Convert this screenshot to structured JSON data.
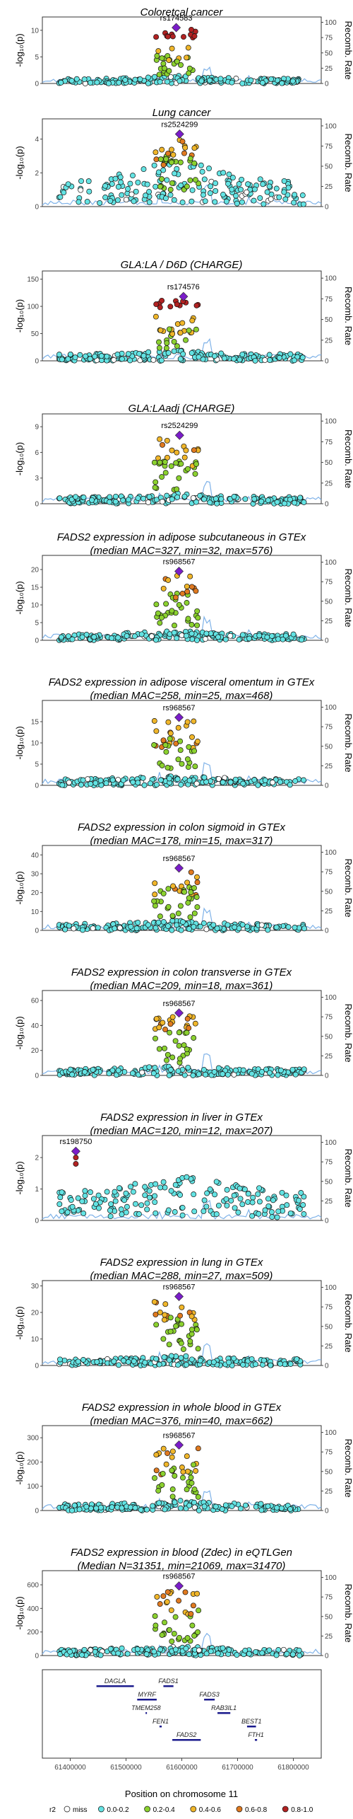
{
  "colors": {
    "miss": "#ffffff",
    "r2_0_0.2": "#63e3e3",
    "r2_0.2_0.4": "#8bd12f",
    "r2_0.4_0.6": "#f0b62a",
    "r2_0.6_0.8": "#e07a20",
    "r2_0.8_1.0": "#b22222",
    "lead": "#7a1cc9",
    "recomb": "#7fb2e8"
  },
  "xaxis": {
    "label": "Position on chromosome 11",
    "ticks": [
      "61400000",
      "61500000",
      "61600000",
      "61700000",
      "61800000"
    ],
    "range": [
      61350000,
      61850000
    ]
  },
  "right_axis": {
    "label": "Recomb. Rate",
    "ticks": [
      "0",
      "25",
      "50",
      "75",
      "100"
    ]
  },
  "left_axis": {
    "label": "-log₁₀(p)"
  },
  "panels": [
    {
      "title": [
        "Coloretcal cancer"
      ],
      "lead": "rs174583",
      "lead_pos": 61590000,
      "lead_y": 10.5,
      "ymax": 12.5,
      "yticks": [
        0,
        5,
        10
      ],
      "peak": 61590000,
      "cluster": "crc"
    },
    {
      "title": [
        "Lung cancer"
      ],
      "lead": "rs2524299",
      "lead_pos": 61596000,
      "lead_y": 4.3,
      "ymax": 5.2,
      "yticks": [
        0,
        2,
        4
      ],
      "peak": 61590000,
      "cluster": "broad"
    },
    {
      "title": [
        "GLA:LA / D6D (CHARGE)"
      ],
      "lead": "rs174576",
      "lead_pos": 61603000,
      "lead_y": 118,
      "ymax": 165,
      "yticks": [
        0,
        50,
        100,
        150
      ],
      "peak": 61590000,
      "cluster": "d6d"
    },
    {
      "title": [
        "GLA:LAadj (CHARGE)"
      ],
      "lead": "rs2524299",
      "lead_pos": 61596000,
      "lead_y": 8,
      "ymax": 10.5,
      "yticks": [
        0,
        3,
        6,
        9
      ],
      "peak": 61590000,
      "cluster": "mid"
    },
    {
      "title": [
        "FADS2 expression in adipose subcutaneous in GTEx",
        "(median MAC=327, min=32, max=576)"
      ],
      "lead": "rs968567",
      "lead_pos": 61595000,
      "lead_y": 19.5,
      "ymax": 24,
      "yticks": [
        0,
        5,
        10,
        15,
        20
      ],
      "peak": 61590000,
      "cluster": "gtex"
    },
    {
      "title": [
        "FADS2 expression in adipose visceral omentum in GTEx",
        "(median MAC=258, min=25, max=468)"
      ],
      "lead": "rs968567",
      "lead_pos": 61595000,
      "lead_y": 16,
      "ymax": 20,
      "yticks": [
        0,
        5,
        10,
        15
      ],
      "peak": 61590000,
      "cluster": "gtex"
    },
    {
      "title": [
        "FADS2 expression in colon sigmoid in GTEx",
        "(median MAC=178, min=15, max=317)"
      ],
      "lead": "rs968567",
      "lead_pos": 61595000,
      "lead_y": 33,
      "ymax": 45,
      "yticks": [
        0,
        10,
        20,
        30,
        40
      ],
      "peak": 61590000,
      "cluster": "gtex"
    },
    {
      "title": [
        "FADS2 expression in colon transverse in GTEx",
        "(median MAC=209, min=18, max=361)"
      ],
      "lead": "rs968567",
      "lead_pos": 61595000,
      "lead_y": 50,
      "ymax": 68,
      "yticks": [
        0,
        20,
        40,
        60
      ],
      "peak": 61590000,
      "cluster": "gtex"
    },
    {
      "title": [
        "FADS2 expression in liver in GTEx",
        "(median MAC=120, min=12, max=207)"
      ],
      "lead": "rs198750",
      "lead_pos": 61410000,
      "lead_y": 2.2,
      "ymax": 2.7,
      "yticks": [
        0,
        1,
        2
      ],
      "peak": 61600000,
      "cluster": "liver"
    },
    {
      "title": [
        "FADS2 expression in lung in GTEx",
        "(median MAC=288, min=27, max=509)"
      ],
      "lead": "rs968567",
      "lead_pos": 61595000,
      "lead_y": 26,
      "ymax": 32,
      "yticks": [
        0,
        10,
        20,
        30
      ],
      "peak": 61590000,
      "cluster": "gtex"
    },
    {
      "title": [
        "FADS2 expression in whole blood in GTEx",
        "(median MAC=376, min=40, max=662)"
      ],
      "lead": "rs968567",
      "lead_pos": 61595000,
      "lead_y": 270,
      "ymax": 350,
      "yticks": [
        0,
        100,
        200,
        300
      ],
      "peak": 61590000,
      "cluster": "gtex"
    },
    {
      "title": [
        "FADS2 expression in blood (Zdec) in eQTLGen",
        "(Median N=31351, min=21069, max=31470)"
      ],
      "lead": "rs968567",
      "lead_pos": 61595000,
      "lead_y": 590,
      "ymax": 720,
      "yticks": [
        0,
        200,
        400,
        600
      ],
      "peak": 61590000,
      "cluster": "gtex"
    }
  ],
  "genes": [
    {
      "name": "DAGLA",
      "start": 61447000,
      "end": 61514000,
      "row": 0
    },
    {
      "name": "FADS1",
      "start": 61567000,
      "end": 61585000,
      "row": 0
    },
    {
      "name": "MYRF",
      "start": 61520000,
      "end": 61555000,
      "row": 1
    },
    {
      "name": "FADS3",
      "start": 61640000,
      "end": 61659000,
      "row": 1
    },
    {
      "name": "TMEM258",
      "start": 61535000,
      "end": 61537000,
      "row": 2
    },
    {
      "name": "RAB3IL1",
      "start": 61664000,
      "end": 61687000,
      "row": 2
    },
    {
      "name": "FEN1",
      "start": 61560000,
      "end": 61564000,
      "row": 3
    },
    {
      "name": "BEST1",
      "start": 61717000,
      "end": 61733000,
      "row": 3
    },
    {
      "name": "FADS2",
      "start": 61583000,
      "end": 61634000,
      "row": 4
    },
    {
      "name": "FTH1",
      "start": 61731000,
      "end": 61735000,
      "row": 4
    }
  ],
  "legend": {
    "title": "r2",
    "items": [
      {
        "label": "miss",
        "color": "#ffffff"
      },
      {
        "label": "0.0-0.2",
        "color": "#63e3e3"
      },
      {
        "label": "0.2-0.4",
        "color": "#8bd12f"
      },
      {
        "label": "0.4-0.6",
        "color": "#f0b62a"
      },
      {
        "label": "0.6-0.8",
        "color": "#e07a20"
      },
      {
        "label": "0.8-1.0",
        "color": "#b22222"
      }
    ]
  }
}
